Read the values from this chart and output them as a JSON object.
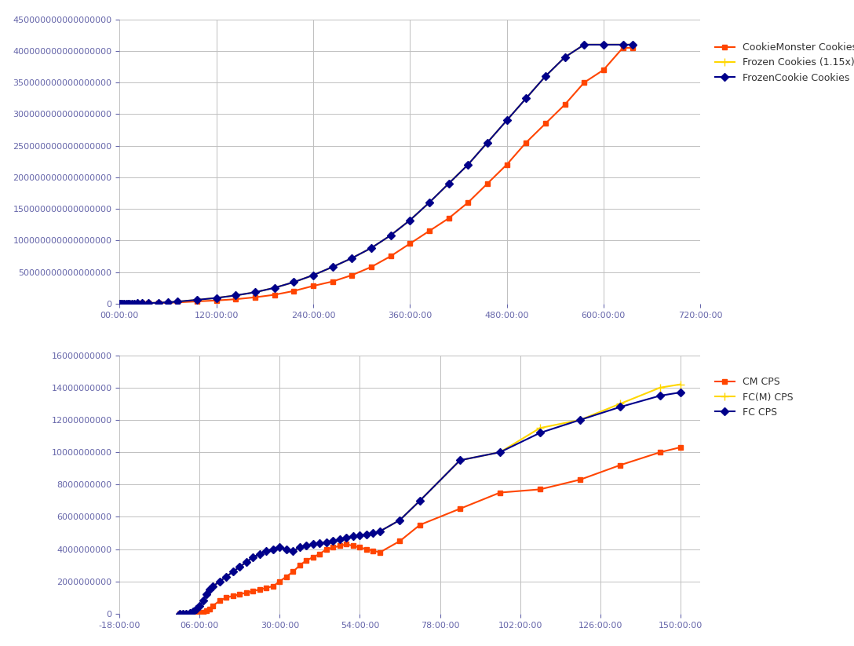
{
  "chart1": {
    "title": "",
    "xlabel": "",
    "ylabel": "",
    "xlim_hours": [
      0,
      720
    ],
    "ylim": [
      0,
      4.5e+17
    ],
    "yticks": [
      0,
      5e+16,
      1e+17,
      1.5e+17,
      2e+17,
      2.5e+17,
      3e+17,
      3.5e+17,
      4e+17,
      4.5e+17
    ],
    "xticks_hours": [
      0,
      120,
      240,
      360,
      480,
      600,
      720
    ],
    "series": {
      "cm_cookies": {
        "label": "CookieMonster Cookies",
        "color": "#FF4500",
        "marker": "s",
        "markersize": 5,
        "linewidth": 1.5,
        "x_hours": [
          0,
          1,
          2,
          4,
          6,
          8,
          10,
          12,
          15,
          18,
          22,
          28,
          36,
          48,
          60,
          72,
          96,
          120,
          144,
          168,
          192,
          216,
          240,
          264,
          288,
          312,
          336,
          360,
          384,
          408,
          432,
          456,
          480,
          504,
          528,
          552,
          576,
          600,
          624,
          636
        ],
        "y": [
          0,
          10000000000000.0,
          20000000000000.0,
          30000000000000.0,
          50000000000000.0,
          70000000000000.0,
          90000000000000.0,
          110000000000000.0,
          150000000000000.0,
          200000000000000.0,
          300000000000000.0,
          400000000000000.0,
          600000000000000.0,
          900000000000000.0,
          1300000000000000.0,
          2000000000000000.0,
          3500000000000000.0,
          5000000000000000.0,
          7000000000000000.0,
          1e+16,
          1.4e+16,
          2e+16,
          2.8e+16,
          3.5e+16,
          4.5e+16,
          5.8e+16,
          7.5e+16,
          9.5e+16,
          1.15e+17,
          1.35e+17,
          1.6e+17,
          1.9e+17,
          2.2e+17,
          2.55e+17,
          2.85e+17,
          3.15e+17,
          3.5e+17,
          3.7e+17,
          4.05e+17,
          4.05e+17
        ]
      },
      "fc_m_cookies": {
        "label": "Frozen Cookies (1.15x)",
        "color": "#FFD700",
        "marker": "+",
        "markersize": 7,
        "linewidth": 1.5,
        "x_hours": [
          0,
          1,
          2,
          4,
          6,
          8,
          10,
          12,
          15,
          18,
          22,
          28,
          36,
          48,
          60,
          72,
          96,
          120,
          144,
          168,
          192,
          216,
          240,
          264,
          288,
          312,
          336,
          360,
          384,
          408,
          432,
          456,
          480,
          504,
          528,
          552,
          576,
          600,
          624,
          636
        ],
        "y": [
          0,
          12000000000000.0,
          25000000000000.0,
          40000000000000.0,
          60000000000000.0,
          80000000000000.0,
          110000000000000.0,
          140000000000000.0,
          200000000000000.0,
          270000000000000.0,
          400000000000000.0,
          600000000000000.0,
          900000000000000.0,
          1500000000000000.0,
          2200000000000000.0,
          3200000000000000.0,
          6000000000000000.0,
          9000000000000000.0,
          1.3e+16,
          1.8e+16,
          2.5e+16,
          3.4e+16,
          4.5e+16,
          5.8e+16,
          7.2e+16,
          8.8e+16,
          1.08e+17,
          1.32e+17,
          1.6e+17,
          1.9e+17,
          2.2e+17,
          2.55e+17,
          2.9e+17,
          3.25e+17,
          3.6e+17,
          3.9e+17,
          4.1e+17,
          4.1e+17,
          4.1e+17,
          4.1e+17
        ]
      },
      "fc_cookies": {
        "label": "FrozenCookie Cookies",
        "color": "#00008B",
        "marker": "D",
        "markersize": 5,
        "linewidth": 1.5,
        "x_hours": [
          0,
          1,
          2,
          4,
          6,
          8,
          10,
          12,
          15,
          18,
          22,
          28,
          36,
          48,
          60,
          72,
          96,
          120,
          144,
          168,
          192,
          216,
          240,
          264,
          288,
          312,
          336,
          360,
          384,
          408,
          432,
          456,
          480,
          504,
          528,
          552,
          576,
          600,
          624,
          636
        ],
        "y": [
          0,
          12000000000000.0,
          25000000000000.0,
          40000000000000.0,
          60000000000000.0,
          80000000000000.0,
          110000000000000.0,
          140000000000000.0,
          200000000000000.0,
          270000000000000.0,
          400000000000000.0,
          600000000000000.0,
          900000000000000.0,
          1500000000000000.0,
          2200000000000000.0,
          3200000000000000.0,
          6000000000000000.0,
          9000000000000000.0,
          1.3e+16,
          1.8e+16,
          2.5e+16,
          3.4e+16,
          4.5e+16,
          5.8e+16,
          7.2e+16,
          8.8e+16,
          1.08e+17,
          1.32e+17,
          1.6e+17,
          1.9e+17,
          2.2e+17,
          2.55e+17,
          2.9e+17,
          3.25e+17,
          3.6e+17,
          3.9e+17,
          4.1e+17,
          4.1e+17,
          4.1e+17,
          4.1e+17
        ]
      }
    }
  },
  "chart2": {
    "title": "",
    "xlabel": "",
    "ylabel": "",
    "xlim_hours": [
      -18,
      156
    ],
    "ylim": [
      0,
      16000000000.0
    ],
    "yticks": [
      0,
      2000000000.0,
      4000000000.0,
      6000000000.0,
      8000000000.0,
      10000000000.0,
      12000000000.0,
      14000000000.0,
      16000000000.0
    ],
    "xticks_hours": [
      -18,
      6,
      30,
      54,
      78,
      102,
      126,
      150
    ],
    "series": {
      "cm_cps": {
        "label": "CM CPS",
        "color": "#FF4500",
        "marker": "s",
        "markersize": 5,
        "linewidth": 1.5,
        "x_hours": [
          0,
          1,
          2,
          3,
          4,
          5,
          6,
          7,
          8,
          9,
          10,
          12,
          14,
          16,
          18,
          20,
          22,
          24,
          26,
          28,
          30,
          32,
          34,
          36,
          38,
          40,
          42,
          44,
          46,
          48,
          50,
          52,
          54,
          56,
          58,
          60,
          66,
          72,
          84,
          96,
          108,
          120,
          132,
          144,
          150
        ],
        "y": [
          0,
          0,
          0,
          0,
          10000000.0,
          20000000.0,
          50000000.0,
          100000000.0,
          200000000.0,
          300000000.0,
          500000000.0,
          800000000.0,
          1000000000.0,
          1100000000.0,
          1200000000.0,
          1300000000.0,
          1400000000.0,
          1500000000.0,
          1600000000.0,
          1700000000.0,
          2000000000.0,
          2300000000.0,
          2600000000.0,
          3000000000.0,
          3300000000.0,
          3500000000.0,
          3700000000.0,
          4000000000.0,
          4100000000.0,
          4200000000.0,
          4300000000.0,
          4200000000.0,
          4100000000.0,
          4000000000.0,
          3900000000.0,
          3800000000.0,
          4500000000.0,
          5500000000.0,
          6500000000.0,
          7500000000.0,
          7700000000.0,
          8300000000.0,
          9200000000.0,
          10000000000.0,
          10300000000.0
        ]
      },
      "fc_m_cps": {
        "label": "FC(M) CPS",
        "color": "#FFD700",
        "marker": "+",
        "markersize": 7,
        "linewidth": 1.5,
        "x_hours": [
          0,
          1,
          2,
          3,
          4,
          5,
          6,
          7,
          8,
          9,
          10,
          12,
          14,
          16,
          18,
          20,
          22,
          24,
          26,
          28,
          30,
          32,
          34,
          36,
          38,
          40,
          42,
          44,
          46,
          48,
          50,
          52,
          54,
          56,
          58,
          60,
          66,
          72,
          84,
          96,
          108,
          120,
          132,
          144,
          150
        ],
        "y": [
          0,
          0,
          0,
          50000000.0,
          150000000.0,
          300000000.0,
          500000000.0,
          800000000.0,
          1200000000.0,
          1500000000.0,
          1700000000.0,
          2000000000.0,
          2300000000.0,
          2600000000.0,
          2900000000.0,
          3200000000.0,
          3500000000.0,
          3700000000.0,
          3900000000.0,
          4000000000.0,
          4100000000.0,
          4000000000.0,
          3900000000.0,
          4100000000.0,
          4200000000.0,
          4300000000.0,
          4350000000.0,
          4400000000.0,
          4500000000.0,
          4600000000.0,
          4700000000.0,
          4800000000.0,
          4850000000.0,
          4900000000.0,
          5000000000.0,
          5100000000.0,
          5800000000.0,
          7000000000.0,
          9500000000.0,
          10000000000.0,
          11500000000.0,
          12000000000.0,
          13000000000.0,
          14000000000.0,
          14200000000.0
        ]
      },
      "fc_cps": {
        "label": "FC CPS",
        "color": "#00008B",
        "marker": "D",
        "markersize": 5,
        "linewidth": 1.5,
        "x_hours": [
          0,
          1,
          2,
          3,
          4,
          5,
          6,
          7,
          8,
          9,
          10,
          12,
          14,
          16,
          18,
          20,
          22,
          24,
          26,
          28,
          30,
          32,
          34,
          36,
          38,
          40,
          42,
          44,
          46,
          48,
          50,
          52,
          54,
          56,
          58,
          60,
          66,
          72,
          84,
          96,
          108,
          120,
          132,
          144,
          150
        ],
        "y": [
          0,
          0,
          0,
          50000000.0,
          150000000.0,
          300000000.0,
          500000000.0,
          800000000.0,
          1200000000.0,
          1500000000.0,
          1700000000.0,
          2000000000.0,
          2300000000.0,
          2600000000.0,
          2900000000.0,
          3200000000.0,
          3500000000.0,
          3700000000.0,
          3900000000.0,
          4000000000.0,
          4100000000.0,
          4000000000.0,
          3900000000.0,
          4100000000.0,
          4200000000.0,
          4300000000.0,
          4350000000.0,
          4400000000.0,
          4500000000.0,
          4600000000.0,
          4700000000.0,
          4800000000.0,
          4850000000.0,
          4900000000.0,
          5000000000.0,
          5100000000.0,
          5800000000.0,
          7000000000.0,
          9500000000.0,
          10000000000.0,
          11200000000.0,
          12000000000.0,
          12800000000.0,
          13500000000.0,
          13700000000.0
        ]
      }
    }
  },
  "background_color": "#FFFFFF",
  "grid_color": "#C0C0C0",
  "axis_label_color": "#6666AA",
  "legend_text_color": "#333333"
}
